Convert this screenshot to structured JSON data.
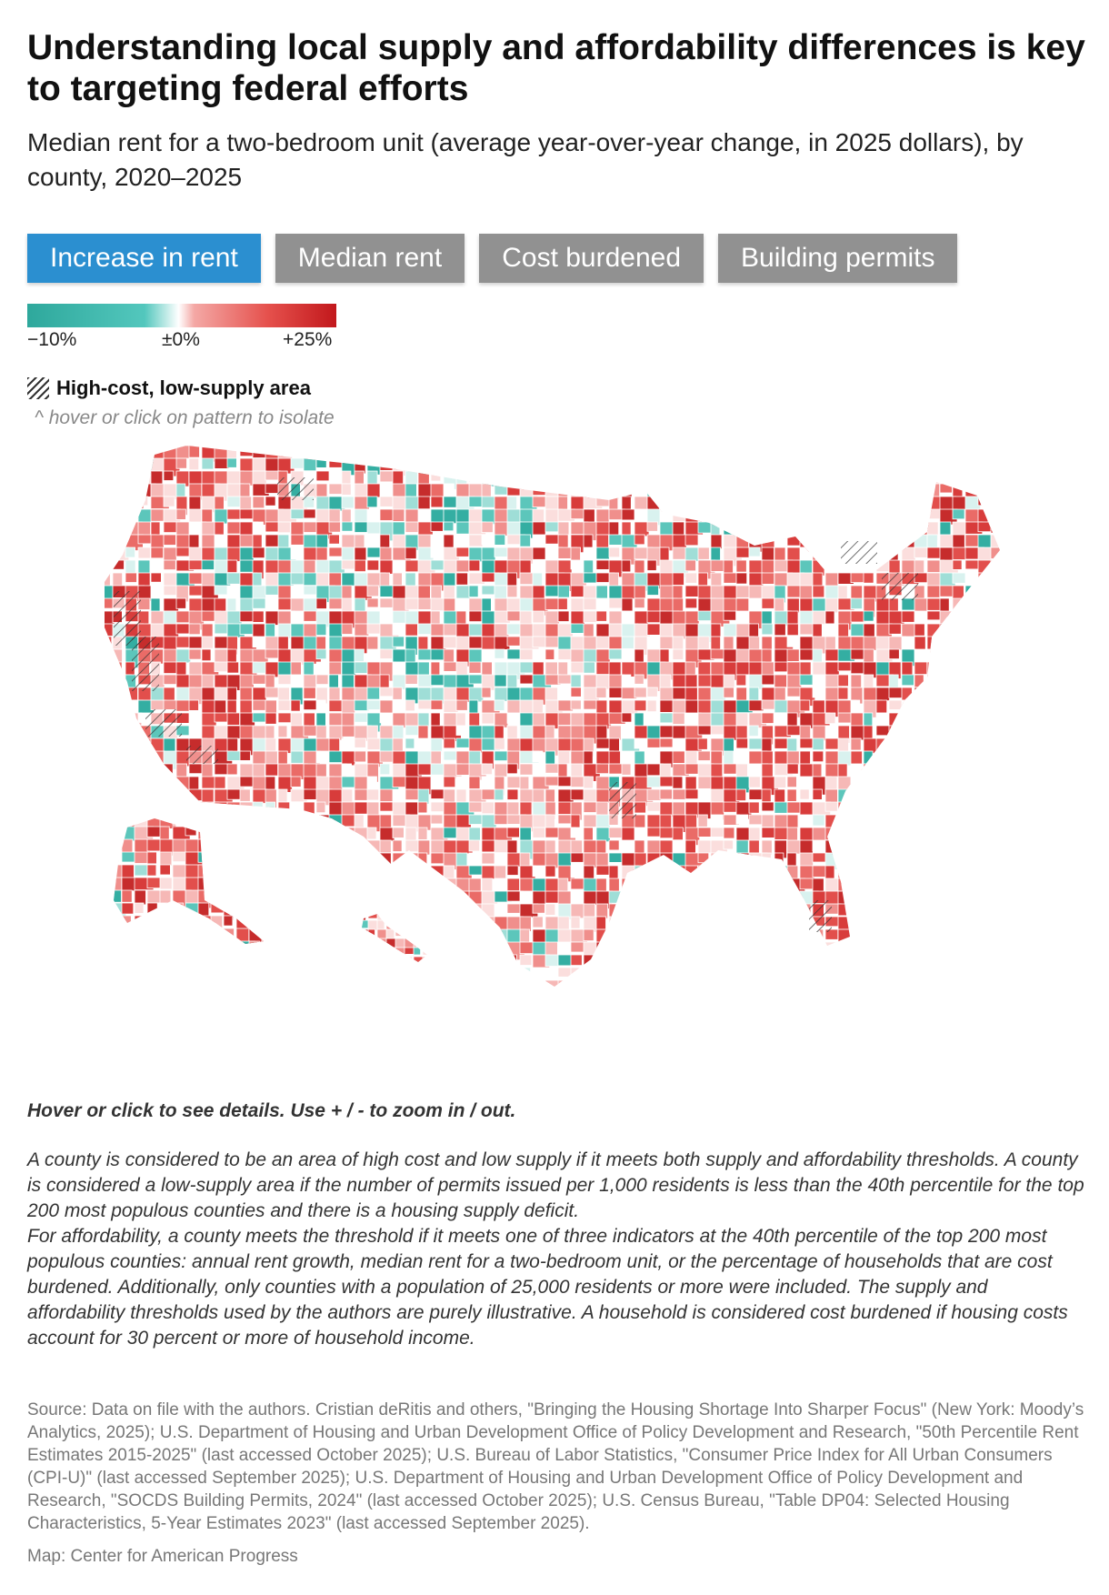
{
  "title": "Understanding local supply and affordability differences is key to targeting federal efforts",
  "subtitle": "Median rent for a two-bedroom unit (average year-over-year change, in 2025 dollars), by county, 2020–2025",
  "tabs": [
    {
      "label": "Increase in rent",
      "active": true
    },
    {
      "label": "Median rent",
      "active": false
    },
    {
      "label": "Cost burdened",
      "active": false
    },
    {
      "label": "Building permits",
      "active": false
    }
  ],
  "legend": {
    "min_label": "−10%",
    "mid_label": "±0%",
    "max_label": "+25%",
    "colors": {
      "low": "#2ea89c",
      "mid": "#ffffff",
      "high": "#c2181c"
    }
  },
  "pattern_legend": {
    "label": "High-cost, low-supply area",
    "hint": "^ hover or click on pattern to isolate"
  },
  "map": {
    "region_colors": [
      "#c62c2c",
      "#d83c3b",
      "#e24f4c",
      "#ea6b67",
      "#f08f8c",
      "#f6b8b6",
      "#fbdedd",
      "#ffffff",
      "#d9f2ef",
      "#9fded7",
      "#5cc6bb",
      "#34aea2"
    ]
  },
  "instructions": "Hover or click to see details. Use + / - to zoom in / out.",
  "note": "A county is considered to be an area of high cost and low supply if it meets both supply and affordability thresholds. A county is considered a low-supply area if the number of permits issued per 1,000 residents is less than the 40th percentile for the top 200 most populous counties and there is a housing supply deficit.",
  "note2": "For affordability, a county meets the threshold if it meets one of three indicators at the 40th percentile of the top 200 most populous counties: annual rent growth, median rent for a two-bedroom unit, or the percentage of households that are cost burdened. Additionally, only counties with a population of 25,000 residents or more were included. The supply and affordability thresholds used by the authors are purely illustrative. A household is considered cost burdened if housing costs account for 30 percent or more of household income.",
  "source": "Source: Data on file with the authors. Cristian deRitis and others, \"Bringing the Housing Shortage Into Sharper Focus\" (New York: Moody’s Analytics, 2025); U.S. Department of Housing and Urban Development Office of Policy Development and Research, \"50th Percentile Rent Estimates 2015-2025\" (last accessed October 2025); U.S. Bureau of Labor Statistics, \"Consumer Price Index for All Urban Consumers (CPI-U)\" (last accessed September 2025); U.S. Department of Housing and Urban Development Office of Policy Development and Research, \"SOCDS Building Permits, 2024\" (last accessed October 2025); U.S. Census Bureau, \"Table DP04: Selected Housing Characteristics, 5-Year Estimates 2023\" (last accessed September 2025).",
  "credit": "Map: Center for American Progress"
}
